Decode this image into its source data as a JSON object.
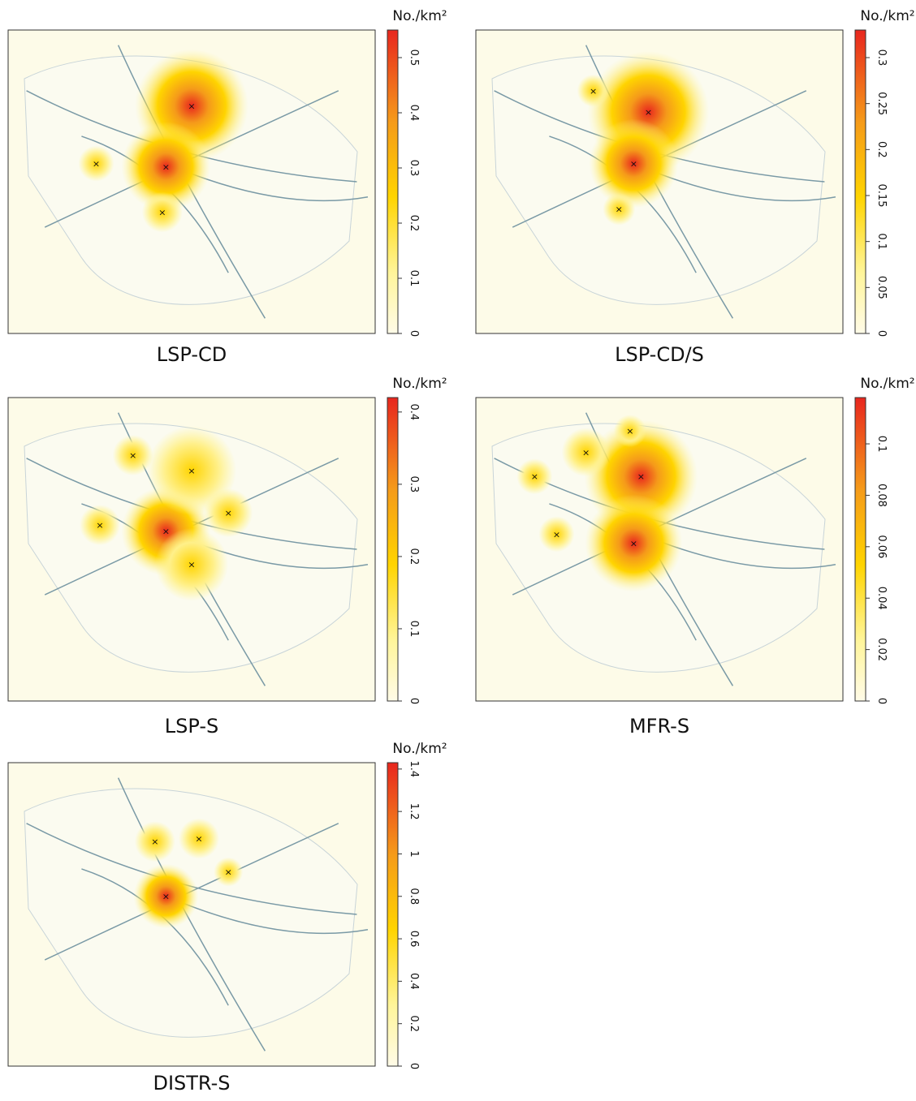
{
  "panels": [
    {
      "title": "LSP-CD",
      "unit": "No./km²",
      "zlim": [
        0,
        0.55
      ],
      "zticks": [
        0,
        0.1,
        0.2,
        0.3,
        0.4,
        0.5
      ]
    },
    {
      "title": "LSP-CD/S",
      "unit": "No./km²",
      "zlim": [
        0,
        0.33
      ],
      "zticks": [
        0,
        0.05,
        0.1,
        0.15,
        0.2,
        0.25,
        0.3
      ]
    },
    {
      "title": "LSP-S",
      "unit": "No./km²",
      "zlim": [
        0,
        0.42
      ],
      "zticks": [
        0,
        0.1,
        0.2,
        0.3,
        0.4
      ]
    },
    {
      "title": "MFR-S",
      "unit": "No./km²",
      "zlim": [
        0,
        0.118
      ],
      "zticks": [
        0,
        0.02,
        0.04,
        0.06,
        0.08,
        0.1
      ]
    },
    {
      "title": "DISTR-S",
      "unit": "No./km²",
      "zlim": [
        0,
        1.43
      ],
      "zticks": [
        0,
        0.2,
        0.4,
        0.6,
        0.8,
        1,
        1.2,
        1.4
      ]
    }
  ]
}
